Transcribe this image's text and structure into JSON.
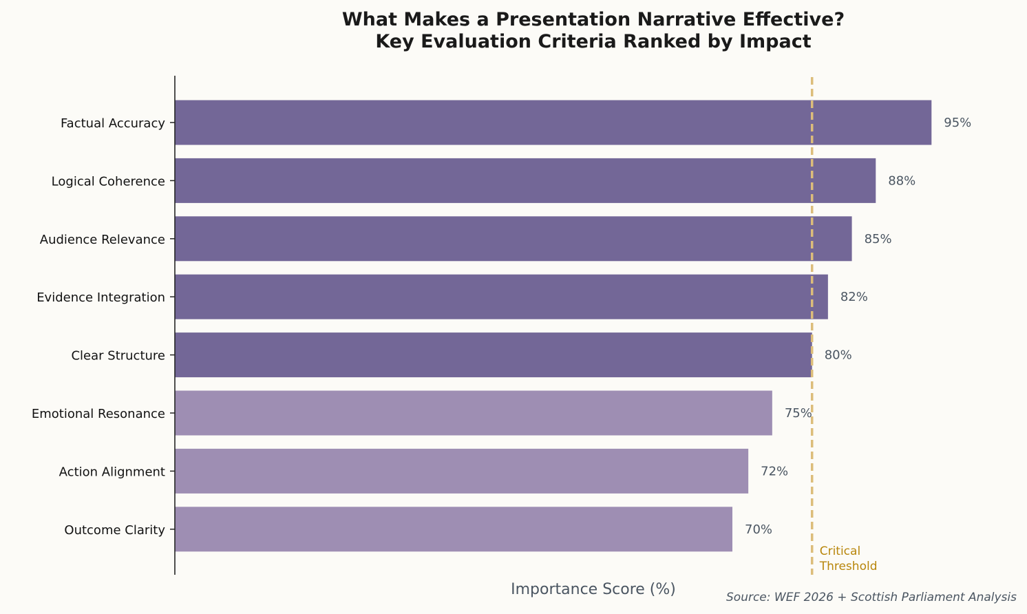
{
  "chart_data": {
    "type": "bar",
    "orientation": "horizontal",
    "title": "What Makes a Presentation Narrative Effective?\nKey Evaluation Criteria Ranked by Impact",
    "title_lines": [
      "What Makes a Presentation Narrative Effective?",
      "Key Evaluation Criteria Ranked by Impact"
    ],
    "xlabel": "Importance Score (%)",
    "ylabel": "",
    "xlim": [
      0,
      105
    ],
    "grid": false,
    "categories": [
      "Factual Accuracy",
      "Logical Coherence",
      "Audience Relevance",
      "Evidence Integration",
      "Clear Structure",
      "Emotional Resonance",
      "Action Alignment",
      "Outcome Clarity"
    ],
    "values": [
      95,
      88,
      85,
      82,
      80,
      75,
      72,
      70
    ],
    "data_labels": [
      "95%",
      "88%",
      "85%",
      "82%",
      "80%",
      "75%",
      "72%",
      "70%"
    ],
    "threshold": {
      "value": 80,
      "label_lines": [
        "Critical",
        "Threshold"
      ],
      "color": "#dcbd7a",
      "label_color": "#b8860b"
    },
    "colors": {
      "above_threshold": "#736797",
      "below_threshold": "#9e8eb3",
      "background": "#fcfbf7",
      "value_label": "#4a5561"
    },
    "source": "Source: WEF 2026 + Scottish Parliament Analysis"
  }
}
